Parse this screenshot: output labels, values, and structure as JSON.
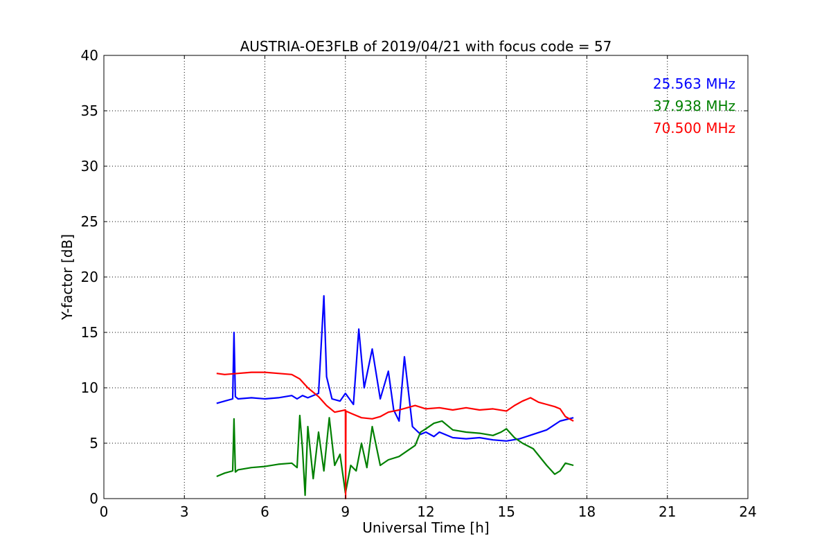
{
  "chart_data": {
    "type": "line",
    "title": "AUSTRIA-OE3FLB of 2019/04/21 with focus code = 57",
    "xlabel": "Universal Time [h]",
    "ylabel": "Y-factor [dB]",
    "xlim": [
      0,
      24
    ],
    "ylim": [
      0,
      40
    ],
    "xticks": [
      0,
      3,
      6,
      9,
      12,
      15,
      18,
      21,
      24
    ],
    "yticks": [
      0,
      5,
      10,
      15,
      20,
      25,
      30,
      35,
      40
    ],
    "xtick_labels": [
      "0",
      "3",
      "6",
      "9",
      "12",
      "15",
      "18",
      "21",
      "24"
    ],
    "ytick_labels": [
      "0",
      "5",
      "10",
      "15",
      "20",
      "25",
      "30",
      "35",
      "40"
    ],
    "grid": true,
    "legend_position": "top-right",
    "series": [
      {
        "name": "25.563 MHz",
        "color": "#0000ff",
        "x": [
          4.2,
          4.5,
          4.8,
          4.85,
          4.9,
          5.0,
          5.5,
          6.0,
          6.5,
          7.0,
          7.2,
          7.4,
          7.6,
          8.0,
          8.2,
          8.3,
          8.5,
          8.8,
          9.0,
          9.3,
          9.5,
          9.7,
          10.0,
          10.3,
          10.6,
          10.8,
          11.0,
          11.2,
          11.5,
          11.8,
          12.0,
          12.3,
          12.5,
          13.0,
          13.5,
          14.0,
          14.5,
          15.0,
          15.5,
          16.0,
          16.5,
          17.0,
          17.5
        ],
        "y": [
          8.6,
          8.8,
          9.0,
          15.0,
          9.2,
          9.0,
          9.1,
          9.0,
          9.1,
          9.3,
          9.0,
          9.3,
          9.1,
          9.5,
          18.3,
          11.0,
          9.0,
          8.8,
          9.5,
          8.5,
          15.3,
          10.0,
          13.5,
          9.0,
          11.5,
          8.0,
          7.0,
          12.8,
          6.5,
          5.8,
          6.0,
          5.6,
          6.0,
          5.5,
          5.4,
          5.5,
          5.3,
          5.2,
          5.4,
          5.8,
          6.2,
          7.0,
          7.3
        ]
      },
      {
        "name": "37.938 MHz",
        "color": "#008000",
        "x": [
          4.2,
          4.5,
          4.8,
          4.85,
          4.9,
          5.0,
          5.5,
          6.0,
          6.5,
          7.0,
          7.2,
          7.3,
          7.4,
          7.5,
          7.6,
          7.8,
          8.0,
          8.2,
          8.4,
          8.6,
          8.8,
          9.0,
          9.2,
          9.4,
          9.6,
          9.8,
          10.0,
          10.3,
          10.6,
          11.0,
          11.3,
          11.6,
          11.8,
          12.0,
          12.3,
          12.6,
          13.0,
          13.5,
          14.0,
          14.5,
          14.8,
          15.0,
          15.3,
          15.6,
          16.0,
          16.5,
          16.8,
          17.0,
          17.2,
          17.5
        ],
        "y": [
          2.0,
          2.3,
          2.5,
          7.2,
          2.4,
          2.6,
          2.8,
          2.9,
          3.1,
          3.2,
          2.8,
          7.5,
          4.5,
          0.3,
          6.5,
          1.8,
          6.0,
          2.5,
          7.3,
          3.0,
          4.0,
          0.5,
          3.0,
          2.5,
          5.0,
          2.8,
          6.5,
          3.0,
          3.5,
          3.8,
          4.3,
          4.8,
          6.0,
          6.3,
          6.8,
          7.0,
          6.2,
          6.0,
          5.9,
          5.7,
          6.0,
          6.3,
          5.5,
          5.0,
          4.5,
          3.0,
          2.2,
          2.5,
          3.2,
          3.0
        ]
      },
      {
        "name": "70.500 MHz",
        "color": "#ff0000",
        "x": [
          4.2,
          4.5,
          5.0,
          5.5,
          6.0,
          6.5,
          7.0,
          7.3,
          7.6,
          8.0,
          8.3,
          8.6,
          9.0,
          9.01,
          9.02,
          9.3,
          9.6,
          10.0,
          10.3,
          10.6,
          11.0,
          11.3,
          11.6,
          12.0,
          12.5,
          13.0,
          13.5,
          14.0,
          14.5,
          15.0,
          15.3,
          15.6,
          15.9,
          16.2,
          16.5,
          16.8,
          17.0,
          17.2,
          17.5
        ],
        "y": [
          11.3,
          11.2,
          11.3,
          11.4,
          11.4,
          11.3,
          11.2,
          10.8,
          10.0,
          9.2,
          8.4,
          7.8,
          8.0,
          0.0,
          7.9,
          7.6,
          7.3,
          7.2,
          7.4,
          7.8,
          8.0,
          8.2,
          8.4,
          8.1,
          8.2,
          8.0,
          8.2,
          8.0,
          8.1,
          7.9,
          8.4,
          8.8,
          9.1,
          8.7,
          8.5,
          8.3,
          8.1,
          7.4,
          7.0
        ]
      }
    ]
  }
}
